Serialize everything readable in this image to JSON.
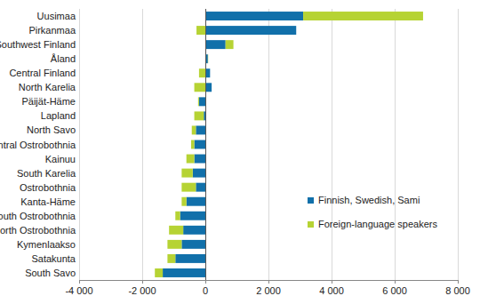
{
  "chart_data": {
    "type": "bar",
    "orientation": "horizontal",
    "stacked": true,
    "grid": true,
    "legend": "lower right",
    "categories": [
      "Uusimaa",
      "Pirkanmaa",
      "Southwest Finland",
      "Åland",
      "Central Finland",
      "North Karelia",
      "Päijät-Häme",
      "Lapland",
      "North Savo",
      "Central Ostrobothnia",
      "Kainuu",
      "South Karelia",
      "Ostrobothnia",
      "Kanta-Häme",
      "South Ostrobothnia",
      "North Ostrobothnia",
      "Kymenlaakso",
      "Satakunta",
      "South Savo"
    ],
    "series": [
      {
        "name": "Finnish, Swedish, Sami",
        "color": "#1170aa",
        "values": [
          3100,
          2880,
          640,
          80,
          150,
          200,
          -200,
          -50,
          -300,
          -350,
          -350,
          -400,
          -300,
          -600,
          -800,
          -700,
          -750,
          -950,
          -1350
        ]
      },
      {
        "name": "Foreign-language speakers",
        "color": "#b6d334",
        "values": [
          3800,
          -280,
          250,
          10,
          -200,
          -350,
          -30,
          -300,
          -130,
          -100,
          -250,
          -350,
          -450,
          -150,
          -150,
          -450,
          -450,
          -250,
          -250
        ]
      }
    ],
    "xlim": [
      -4000,
      8000
    ],
    "xticks": [
      {
        "value": -4000,
        "label": "-4 000"
      },
      {
        "value": -2000,
        "label": "-2 000"
      },
      0,
      {
        "value": 2000,
        "label": "2 000"
      },
      {
        "value": 4000,
        "label": "4 000"
      },
      {
        "value": 6000,
        "label": "6 000"
      },
      {
        "value": 8000,
        "label": "8 000"
      }
    ]
  }
}
